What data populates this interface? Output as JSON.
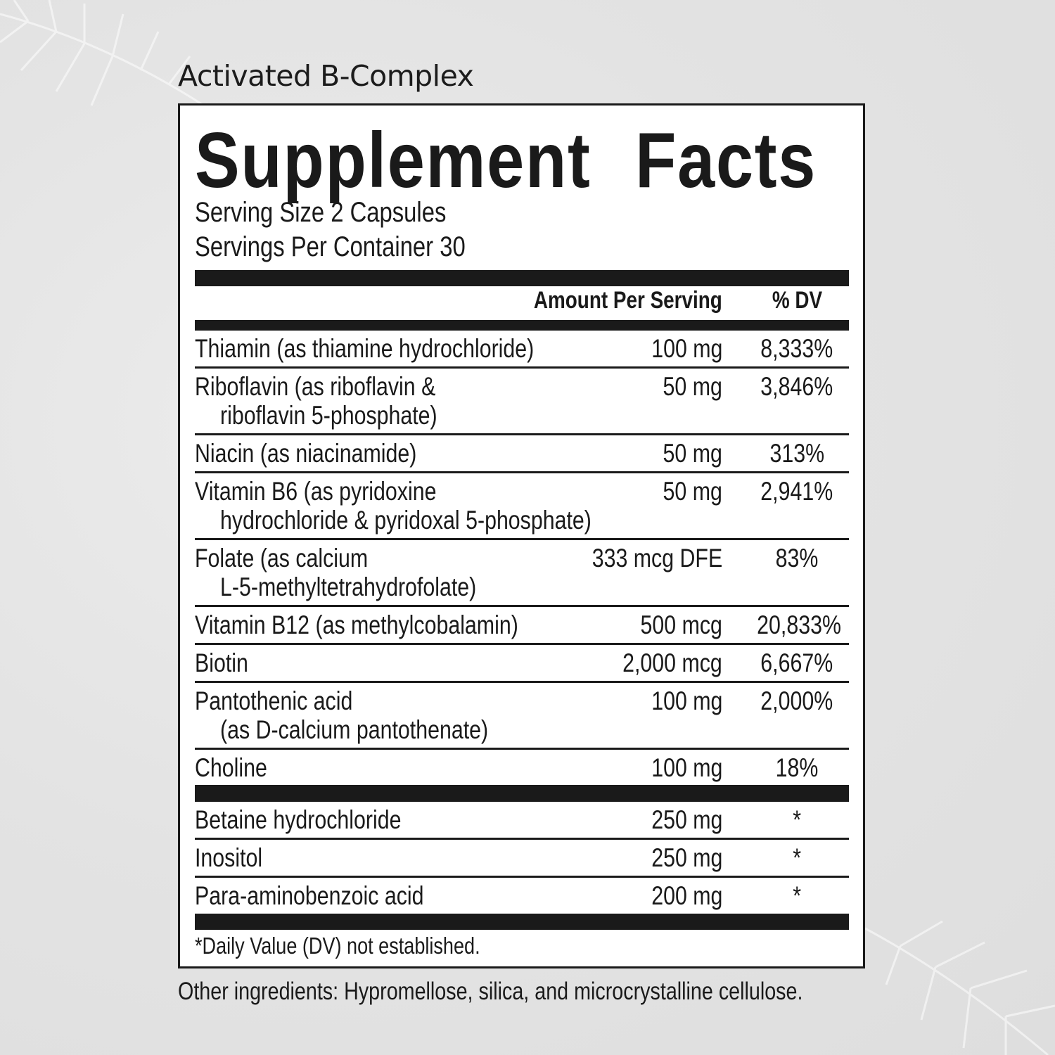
{
  "product_name": "Activated B-Complex",
  "title": "Supplement Facts",
  "serving_size": "Serving Size 2 Capsules",
  "servings_per_container": "Servings Per Container 30",
  "header": {
    "amount": "Amount Per Serving",
    "dv": "% DV"
  },
  "rows": [
    {
      "name": [
        "Thiamin (as thiamine hydrochloride)"
      ],
      "amount": "100 mg",
      "dv": "8,333%"
    },
    {
      "name": [
        "Riboflavin (as riboflavin &",
        "riboflavin 5-phosphate)"
      ],
      "amount": "50 mg",
      "dv": "3,846%"
    },
    {
      "name": [
        "Niacin (as niacinamide)"
      ],
      "amount": "50 mg",
      "dv": "313%"
    },
    {
      "name": [
        "Vitamin B6 (as pyridoxine",
        "hydrochloride & pyridoxal 5-phosphate)"
      ],
      "amount": "50 mg",
      "dv": "2,941%"
    },
    {
      "name": [
        "Folate (as calcium",
        "L-5-methyltetrahydrofolate)"
      ],
      "amount": "333 mcg DFE",
      "dv": "83%"
    },
    {
      "name": [
        "Vitamin B12 (as methylcobalamin)"
      ],
      "amount": "500 mcg",
      "dv": "20,833%"
    },
    {
      "name": [
        "Biotin"
      ],
      "amount": "2,000 mcg",
      "dv": "6,667%"
    },
    {
      "name": [
        "Pantothenic acid",
        "(as D-calcium pantothenate)"
      ],
      "amount": "100 mg",
      "dv": "2,000%"
    },
    {
      "name": [
        "Choline"
      ],
      "amount": "100 mg",
      "dv": "18%"
    }
  ],
  "other_rows": [
    {
      "name": [
        "Betaine hydrochloride"
      ],
      "amount": "250 mg",
      "dv": "*"
    },
    {
      "name": [
        "Inositol"
      ],
      "amount": "250 mg",
      "dv": "*"
    },
    {
      "name": [
        "Para-aminobenzoic acid"
      ],
      "amount": "200 mg",
      "dv": "*"
    }
  ],
  "footnote": "*Daily Value (DV) not established.",
  "other_ingredients": "Other ingredients: Hypromellose, silica, and microcrystalline cellulose."
}
